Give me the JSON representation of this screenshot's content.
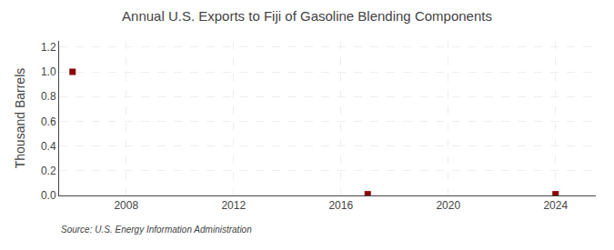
{
  "chart_data": {
    "type": "scatter",
    "title": "Annual U.S. Exports to Fiji of Gasoline Blending Components",
    "y_label": "Thousand Barrels",
    "annotations": [
      "Source: U.S. Energy Information Administration"
    ],
    "x": [
      2006,
      2017,
      2024
    ],
    "values": [
      1.0,
      0.01,
      0.01
    ],
    "color": "#8B0000",
    "marker": "square",
    "xlim": [
      2005.5,
      2025.5
    ],
    "ylim": [
      0.0,
      1.25
    ],
    "xticks": [
      2008,
      2012,
      2016,
      2020,
      2024
    ],
    "yticks": [
      {
        "value": 0.0,
        "label": "0.0"
      },
      0.2,
      0.4,
      0.6,
      0.8,
      {
        "value": 1.0,
        "label": "1.0"
      },
      1.2
    ],
    "grid": true
  }
}
